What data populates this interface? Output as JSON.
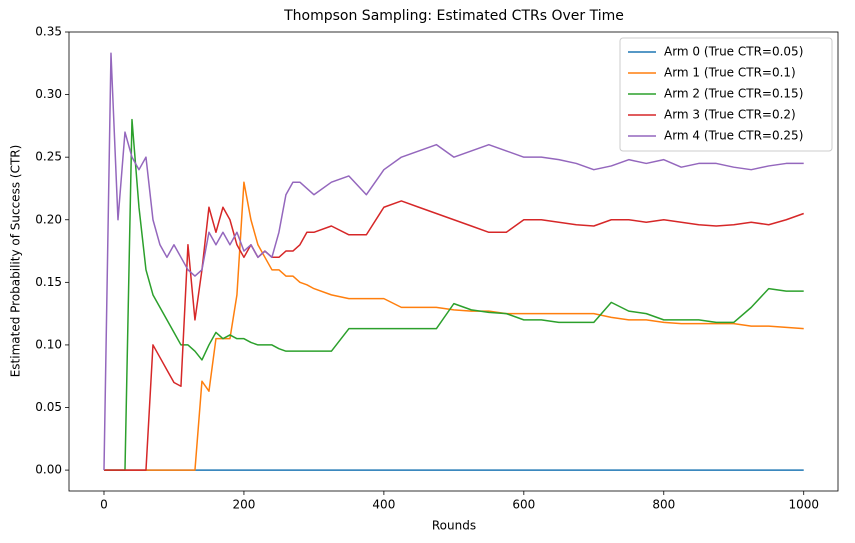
{
  "chart_data": {
    "type": "line",
    "title": "Thompson Sampling: Estimated CTRs Over Time",
    "x_label": "Rounds",
    "y_label": "Estimated Probability of Success (CTR)",
    "xlim": [
      -50,
      1049
    ],
    "ylim": [
      -0.0167,
      0.35
    ],
    "xticks": [
      0,
      200,
      400,
      600,
      800,
      1000
    ],
    "yticks": [
      {
        "value": 0,
        "label": "0.00"
      },
      {
        "value": 0.05,
        "label": "0.05"
      },
      {
        "value": 0.1,
        "label": "0.10"
      },
      {
        "value": 0.15,
        "label": "0.15"
      },
      {
        "value": 0.2,
        "label": "0.20"
      },
      {
        "value": 0.25,
        "label": "0.25"
      },
      {
        "value": 0.3,
        "label": "0.30"
      },
      {
        "value": 0.35,
        "label": "0.35"
      }
    ],
    "grid": false,
    "legend": "upper right",
    "x": [
      0,
      10,
      20,
      30,
      40,
      50,
      60,
      70,
      80,
      90,
      100,
      110,
      120,
      130,
      140,
      150,
      160,
      170,
      180,
      190,
      200,
      210,
      220,
      230,
      240,
      250,
      260,
      270,
      280,
      290,
      300,
      325,
      350,
      375,
      400,
      425,
      450,
      475,
      500,
      525,
      550,
      575,
      600,
      625,
      650,
      675,
      700,
      725,
      750,
      775,
      800,
      825,
      850,
      875,
      900,
      925,
      950,
      975,
      1000
    ],
    "series": [
      {
        "name": "Arm 0 (True CTR=0.05)",
        "color": "#1f77b4",
        "values": [
          0,
          0,
          0,
          0,
          0,
          0,
          0,
          0,
          0,
          0,
          0,
          0,
          0,
          0,
          0,
          0,
          0,
          0,
          0,
          0,
          0,
          0,
          0,
          0,
          0,
          0,
          0,
          0,
          0,
          0,
          0,
          0,
          0,
          0,
          0,
          0,
          0,
          0,
          0,
          0,
          0,
          0,
          0,
          0,
          0,
          0,
          0,
          0,
          0,
          0,
          0,
          0,
          0,
          0,
          0,
          0,
          0,
          0,
          0
        ]
      },
      {
        "name": "Arm 1 (True CTR=0.1)",
        "color": "#ff7f0e",
        "values": [
          0,
          0,
          0,
          0,
          0,
          0,
          0,
          0,
          0,
          0,
          0,
          0,
          0,
          0,
          0.071,
          0.063,
          0.105,
          0.105,
          0.105,
          0.14,
          0.23,
          0.2,
          0.18,
          0.17,
          0.16,
          0.16,
          0.155,
          0.155,
          0.15,
          0.148,
          0.145,
          0.14,
          0.137,
          0.137,
          0.137,
          0.13,
          0.13,
          0.13,
          0.128,
          0.127,
          0.127,
          0.125,
          0.125,
          0.125,
          0.125,
          0.125,
          0.125,
          0.122,
          0.12,
          0.12,
          0.118,
          0.117,
          0.117,
          0.117,
          0.117,
          0.115,
          0.115,
          0.114,
          0.113
        ]
      },
      {
        "name": "Arm 2 (True CTR=0.15)",
        "color": "#2ca02c",
        "values": [
          0,
          0,
          0,
          0,
          0.28,
          0.21,
          0.16,
          0.14,
          0.13,
          0.12,
          0.11,
          0.1,
          0.1,
          0.095,
          0.088,
          0.1,
          0.11,
          0.105,
          0.108,
          0.105,
          0.105,
          0.102,
          0.1,
          0.1,
          0.1,
          0.097,
          0.095,
          0.095,
          0.095,
          0.095,
          0.095,
          0.095,
          0.113,
          0.113,
          0.113,
          0.113,
          0.113,
          0.113,
          0.133,
          0.128,
          0.126,
          0.125,
          0.12,
          0.12,
          0.118,
          0.118,
          0.118,
          0.134,
          0.127,
          0.125,
          0.12,
          0.12,
          0.12,
          0.118,
          0.118,
          0.13,
          0.145,
          0.143,
          0.143
        ]
      },
      {
        "name": "Arm 3 (True CTR=0.2)",
        "color": "#d62728",
        "values": [
          0,
          0,
          0,
          0,
          0,
          0,
          0,
          0.1,
          0.09,
          0.08,
          0.07,
          0.067,
          0.18,
          0.12,
          0.16,
          0.21,
          0.19,
          0.21,
          0.2,
          0.18,
          0.17,
          0.18,
          0.17,
          0.175,
          0.17,
          0.17,
          0.175,
          0.175,
          0.18,
          0.19,
          0.19,
          0.195,
          0.188,
          0.188,
          0.21,
          0.215,
          0.21,
          0.205,
          0.2,
          0.195,
          0.19,
          0.19,
          0.2,
          0.2,
          0.198,
          0.196,
          0.195,
          0.2,
          0.2,
          0.198,
          0.2,
          0.198,
          0.196,
          0.195,
          0.196,
          0.198,
          0.196,
          0.2,
          0.205
        ]
      },
      {
        "name": "Arm 4 (True CTR=0.25)",
        "color": "#9467bd",
        "values": [
          0,
          0.333,
          0.2,
          0.27,
          0.25,
          0.24,
          0.25,
          0.2,
          0.18,
          0.17,
          0.18,
          0.17,
          0.16,
          0.155,
          0.16,
          0.19,
          0.18,
          0.19,
          0.18,
          0.19,
          0.175,
          0.18,
          0.17,
          0.175,
          0.17,
          0.19,
          0.22,
          0.23,
          0.23,
          0.225,
          0.22,
          0.23,
          0.235,
          0.22,
          0.24,
          0.25,
          0.255,
          0.26,
          0.25,
          0.255,
          0.26,
          0.255,
          0.25,
          0.25,
          0.248,
          0.245,
          0.24,
          0.243,
          0.248,
          0.245,
          0.248,
          0.242,
          0.245,
          0.245,
          0.242,
          0.24,
          0.243,
          0.245,
          0.245
        ]
      }
    ]
  }
}
